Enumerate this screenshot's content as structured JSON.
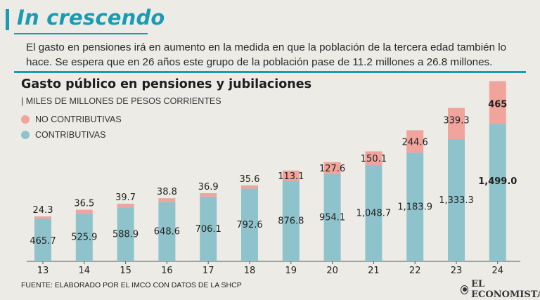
{
  "headline": "In crescendo",
  "subtitle": "El gasto en pensiones irá en aumento en la medida en que la población de la tercera edad también lo hace. Se espera que en 26 años este grupo de la población pase de 11.2 millones a 26.8 millones.",
  "source": "FUENTE: ELABORADO POR EL IMCO CON DATOS DE LA SHCP",
  "brand": "EL ECONOMISTA",
  "colors": {
    "accent": "#1a9bb5",
    "contributivas": "#8ec3cc",
    "no_contributivas": "#f0a49b"
  },
  "chart_data": {
    "type": "bar",
    "stacked": true,
    "title": "Gasto público en pensiones y jubilaciones",
    "units": "| MILES DE MILLONES DE PESOS CORRIENTES",
    "categories": [
      "13",
      "14",
      "15",
      "16",
      "17",
      "18",
      "19",
      "20",
      "21",
      "22",
      "23",
      "24"
    ],
    "series": [
      {
        "name": "CONTRIBUTIVAS",
        "values": [
          465.7,
          525.9,
          588.9,
          648.6,
          706.1,
          792.6,
          876.8,
          954.1,
          1048.7,
          1183.9,
          1333.3,
          1499.0
        ],
        "labels": [
          "465.7",
          "525.9",
          "588.9",
          "648.6",
          "706.1",
          "792.6",
          "876.8",
          "954.1",
          "1,048.7",
          "1,183.9",
          "1,333.3",
          "1,499.0"
        ]
      },
      {
        "name": "NO CONTRIBUTIVAS",
        "values": [
          24.3,
          36.5,
          39.7,
          38.8,
          36.9,
          35.6,
          113.1,
          127.6,
          150.1,
          244.6,
          339.3,
          465
        ],
        "labels": [
          "24.3",
          "36.5",
          "39.7",
          "38.8",
          "36.9",
          "35.6",
          "113.1",
          "127.6",
          "150.1",
          "244.6",
          "339.3",
          "465"
        ]
      }
    ],
    "legend": [
      "NO CONTRIBUTIVAS",
      "CONTRIBUTIVAS"
    ],
    "ylim": [
      0,
      2000
    ]
  }
}
